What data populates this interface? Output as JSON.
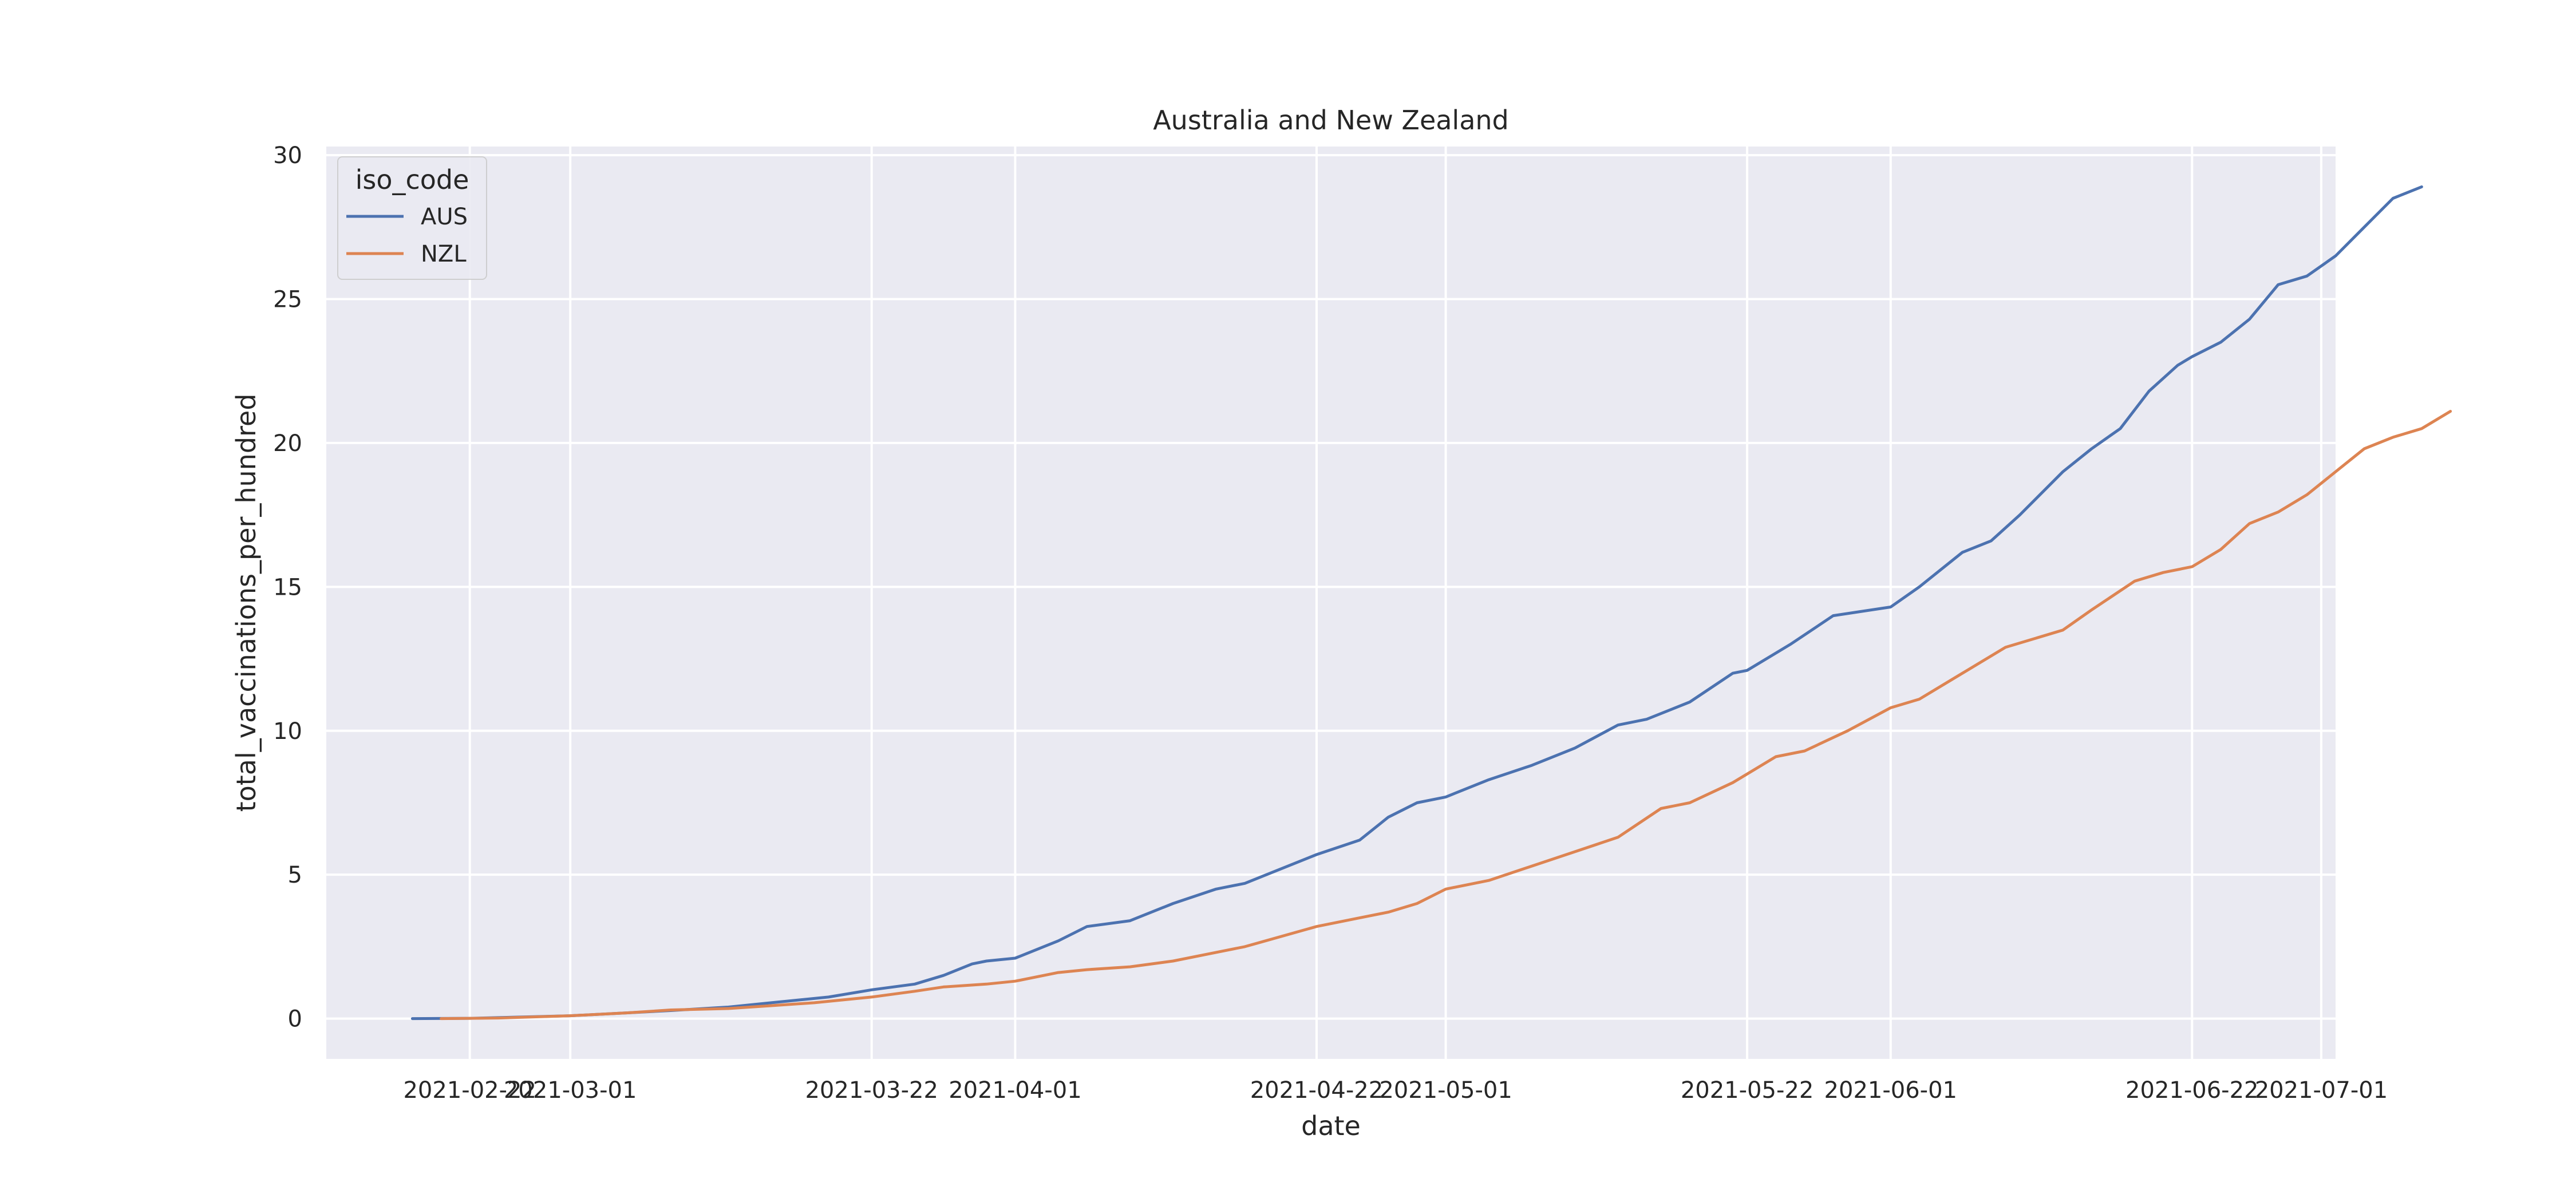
{
  "chart_data": {
    "type": "line",
    "title": "Australia and New Zealand",
    "xlabel": "date",
    "ylabel": "total_vaccinations_per_hundred",
    "xlim": [
      "2021-02-12",
      "2021-07-02"
    ],
    "ylim": [
      -1.4,
      30.3
    ],
    "grid": true,
    "x_ticks": [
      {
        "date": "2021-02-22",
        "label": "2021-02-22"
      },
      {
        "date": "2021-03-01",
        "label": "2021-03-01"
      },
      {
        "date": "2021-03-22",
        "label": "2021-03-22"
      },
      {
        "date": "2021-04-01",
        "label": "2021-04-01"
      },
      {
        "date": "2021-04-22",
        "label": "2021-04-22"
      },
      {
        "date": "2021-05-01",
        "label": "2021-05-01"
      },
      {
        "date": "2021-05-22",
        "label": "2021-05-22"
      },
      {
        "date": "2021-06-01",
        "label": "2021-06-01"
      },
      {
        "date": "2021-06-22",
        "label": "2021-06-22"
      },
      {
        "date": "2021-07-01",
        "label": "2021-07-01"
      }
    ],
    "y_ticks": [
      0,
      5,
      10,
      15,
      20,
      25,
      30
    ],
    "legend": {
      "title": "iso_code",
      "position": "top-left"
    },
    "series": [
      {
        "name": "AUS",
        "color": "#4c72b0",
        "points": [
          [
            "2021-02-18",
            0.0
          ],
          [
            "2021-02-22",
            0.01
          ],
          [
            "2021-03-01",
            0.1
          ],
          [
            "2021-03-05",
            0.2
          ],
          [
            "2021-03-08",
            0.28
          ],
          [
            "2021-03-12",
            0.4
          ],
          [
            "2021-03-15",
            0.55
          ],
          [
            "2021-03-17",
            0.65
          ],
          [
            "2021-03-19",
            0.75
          ],
          [
            "2021-03-22",
            1.0
          ],
          [
            "2021-03-25",
            1.2
          ],
          [
            "2021-03-27",
            1.5
          ],
          [
            "2021-03-29",
            1.9
          ],
          [
            "2021-03-30",
            2.0
          ],
          [
            "2021-04-01",
            2.1
          ],
          [
            "2021-04-04",
            2.7
          ],
          [
            "2021-04-06",
            3.2
          ],
          [
            "2021-04-09",
            3.4
          ],
          [
            "2021-04-12",
            4.0
          ],
          [
            "2021-04-15",
            4.5
          ],
          [
            "2021-04-17",
            4.7
          ],
          [
            "2021-04-22",
            5.7
          ],
          [
            "2021-04-25",
            6.2
          ],
          [
            "2021-04-27",
            7.0
          ],
          [
            "2021-04-29",
            7.5
          ],
          [
            "2021-05-01",
            7.7
          ],
          [
            "2021-05-04",
            8.3
          ],
          [
            "2021-05-07",
            8.8
          ],
          [
            "2021-05-10",
            9.4
          ],
          [
            "2021-05-13",
            10.2
          ],
          [
            "2021-05-15",
            10.4
          ],
          [
            "2021-05-18",
            11.0
          ],
          [
            "2021-05-21",
            12.0
          ],
          [
            "2021-05-22",
            12.1
          ],
          [
            "2021-05-25",
            13.0
          ],
          [
            "2021-05-28",
            14.0
          ],
          [
            "2021-06-01",
            14.3
          ],
          [
            "2021-06-03",
            15.0
          ],
          [
            "2021-06-06",
            16.2
          ],
          [
            "2021-06-08",
            16.6
          ],
          [
            "2021-06-10",
            17.5
          ],
          [
            "2021-06-13",
            19.0
          ],
          [
            "2021-06-15",
            19.8
          ],
          [
            "2021-06-17",
            20.5
          ],
          [
            "2021-06-19",
            21.8
          ],
          [
            "2021-06-21",
            22.7
          ],
          [
            "2021-06-22",
            23.0
          ],
          [
            "2021-06-24",
            23.5
          ],
          [
            "2021-06-26",
            24.3
          ],
          [
            "2021-06-28",
            25.5
          ],
          [
            "2021-06-30",
            25.8
          ],
          [
            "2021-07-02",
            26.5
          ],
          [
            "2021-07-04",
            27.5
          ],
          [
            "2021-07-06",
            28.5
          ],
          [
            "2021-07-08",
            28.9
          ]
        ]
      },
      {
        "name": "NZL",
        "color": "#dd8452",
        "points": [
          [
            "2021-02-20",
            0.0
          ],
          [
            "2021-02-24",
            0.02
          ],
          [
            "2021-03-01",
            0.1
          ],
          [
            "2021-03-05",
            0.2
          ],
          [
            "2021-03-08",
            0.3
          ],
          [
            "2021-03-12",
            0.35
          ],
          [
            "2021-03-15",
            0.45
          ],
          [
            "2021-03-18",
            0.55
          ],
          [
            "2021-03-22",
            0.75
          ],
          [
            "2021-03-25",
            0.95
          ],
          [
            "2021-03-27",
            1.1
          ],
          [
            "2021-03-30",
            1.2
          ],
          [
            "2021-04-01",
            1.3
          ],
          [
            "2021-04-04",
            1.6
          ],
          [
            "2021-04-06",
            1.7
          ],
          [
            "2021-04-09",
            1.8
          ],
          [
            "2021-04-12",
            2.0
          ],
          [
            "2021-04-15",
            2.3
          ],
          [
            "2021-04-17",
            2.5
          ],
          [
            "2021-04-22",
            3.2
          ],
          [
            "2021-04-25",
            3.5
          ],
          [
            "2021-04-27",
            3.7
          ],
          [
            "2021-04-29",
            4.0
          ],
          [
            "2021-05-01",
            4.5
          ],
          [
            "2021-05-04",
            4.8
          ],
          [
            "2021-05-07",
            5.3
          ],
          [
            "2021-05-10",
            5.8
          ],
          [
            "2021-05-13",
            6.3
          ],
          [
            "2021-05-16",
            7.3
          ],
          [
            "2021-05-18",
            7.5
          ],
          [
            "2021-05-21",
            8.2
          ],
          [
            "2021-05-24",
            9.1
          ],
          [
            "2021-05-26",
            9.3
          ],
          [
            "2021-05-29",
            10.0
          ],
          [
            "2021-06-01",
            10.8
          ],
          [
            "2021-06-03",
            11.1
          ],
          [
            "2021-06-06",
            12.0
          ],
          [
            "2021-06-09",
            12.9
          ],
          [
            "2021-06-11",
            13.2
          ],
          [
            "2021-06-13",
            13.5
          ],
          [
            "2021-06-15",
            14.2
          ],
          [
            "2021-06-18",
            15.2
          ],
          [
            "2021-06-20",
            15.5
          ],
          [
            "2021-06-22",
            15.7
          ],
          [
            "2021-06-24",
            16.3
          ],
          [
            "2021-06-26",
            17.2
          ],
          [
            "2021-06-28",
            17.6
          ],
          [
            "2021-06-30",
            18.2
          ],
          [
            "2021-07-02",
            19.0
          ],
          [
            "2021-07-04",
            19.8
          ],
          [
            "2021-07-06",
            20.2
          ],
          [
            "2021-07-08",
            20.5
          ],
          [
            "2021-07-10",
            21.1
          ]
        ]
      }
    ]
  }
}
